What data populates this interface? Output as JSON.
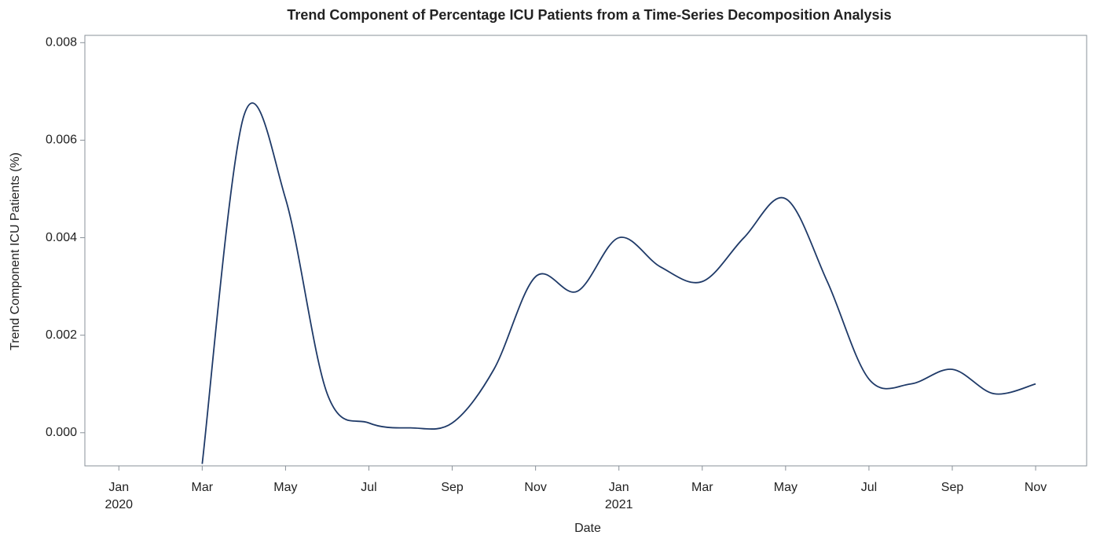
{
  "chart_data": {
    "type": "line",
    "title": "Trend Component of Percentage ICU Patients from a Time-Series Decomposition Analysis",
    "x_label": "Date",
    "y_label": "Trend Component ICU Patients (%)",
    "x": [
      "2020-03",
      "2020-04",
      "2020-05",
      "2020-06",
      "2020-07",
      "2020-08",
      "2020-09",
      "2020-10",
      "2020-11",
      "2020-12",
      "2021-01",
      "2021-02",
      "2021-03",
      "2021-04",
      "2021-05",
      "2021-06",
      "2021-07",
      "2021-08",
      "2021-09",
      "2021-10",
      "2021-11"
    ],
    "series": [
      {
        "color": "#1f3a68",
        "values": [
          -0.00064,
          0.0065,
          0.0048,
          0.0008,
          0.0002,
          0.0001,
          0.0002,
          0.0013,
          0.0032,
          0.0029,
          0.004,
          0.0034,
          0.0031,
          0.004,
          0.0048,
          0.0031,
          0.0011,
          0.001,
          0.0013,
          0.0008,
          0.001
        ]
      }
    ],
    "xlim": [
      "2019-12",
      "2021-11"
    ],
    "ylim": [
      -0.00068,
      0.00815
    ],
    "xticks": [
      {
        "value": "2020-01",
        "label": "Jan"
      },
      {
        "value": "2020-03",
        "label": "Mar"
      },
      {
        "value": "2020-05",
        "label": "May"
      },
      {
        "value": "2020-07",
        "label": "Jul"
      },
      {
        "value": "2020-09",
        "label": "Sep"
      },
      {
        "value": "2020-11",
        "label": "Nov"
      },
      {
        "value": "2021-01",
        "label": "Jan"
      },
      {
        "value": "2021-03",
        "label": "Mar"
      },
      {
        "value": "2021-05",
        "label": "May"
      },
      {
        "value": "2021-07",
        "label": "Jul"
      },
      {
        "value": "2021-09",
        "label": "Sep"
      },
      {
        "value": "2021-11",
        "label": "Nov"
      }
    ],
    "xtick_years": [
      {
        "value": "2020-01",
        "label": "2020"
      },
      {
        "value": "2021-01",
        "label": "2021"
      }
    ],
    "yticks": [
      {
        "value": 0,
        "label": "0.000"
      },
      {
        "value": 0.002,
        "label": "0.002"
      },
      {
        "value": 0.004,
        "label": "0.004"
      },
      {
        "value": 0.006,
        "label": "0.006"
      },
      {
        "value": 0.008,
        "label": "0.008"
      }
    ],
    "grid": false
  }
}
